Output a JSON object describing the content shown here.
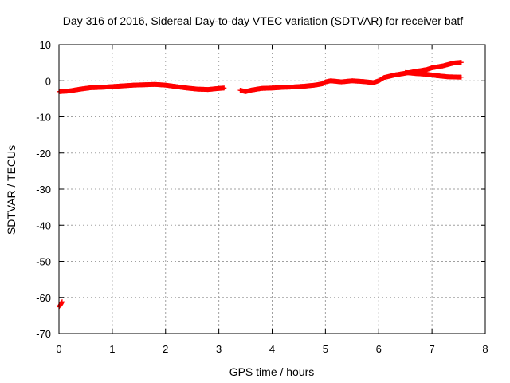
{
  "chart_data": {
    "type": "scatter",
    "title": "Day 316 of 2016, Sidereal Day-to-day VTEC variation (SDTVAR) for receiver batf",
    "xlabel": "GPS time / hours",
    "ylabel": "SDTVAR / TECUs",
    "xlim": [
      0,
      8
    ],
    "ylim": [
      -70,
      10
    ],
    "x_ticks": [
      0,
      1,
      2,
      3,
      4,
      5,
      6,
      7,
      8
    ],
    "y_ticks": [
      10,
      0,
      -10,
      -20,
      -30,
      -40,
      -50,
      -60,
      -70
    ],
    "grid": true,
    "legend": "none",
    "colors": {
      "series": "#ff0000",
      "grid": "#a0a0a0",
      "axis": "#000000"
    },
    "series": [
      {
        "name": "segment-1",
        "x": [
          0.0,
          0.2,
          0.4,
          0.6,
          0.8,
          1.0,
          1.2,
          1.4,
          1.6,
          1.8,
          2.0,
          2.2,
          2.4,
          2.6,
          2.8,
          3.0,
          3.1
        ],
        "y": [
          -3.0,
          -2.8,
          -2.3,
          -1.9,
          -1.8,
          -1.6,
          -1.4,
          -1.2,
          -1.1,
          -1.0,
          -1.2,
          -1.6,
          -2.0,
          -2.3,
          -2.4,
          -2.1,
          -2.0
        ]
      },
      {
        "name": "segment-2",
        "x": [
          3.4,
          3.5,
          3.6,
          3.8,
          4.0,
          4.2,
          4.4,
          4.6,
          4.8,
          4.95,
          5.0,
          5.1,
          5.3,
          5.5,
          5.7,
          5.9,
          6.0,
          6.1,
          6.3,
          6.5,
          6.7,
          6.9,
          7.0,
          7.2,
          7.4,
          7.55
        ],
        "y": [
          -2.6,
          -3.0,
          -2.6,
          -2.1,
          -2.0,
          -1.8,
          -1.7,
          -1.5,
          -1.2,
          -0.8,
          -0.3,
          0.0,
          -0.3,
          0.0,
          -0.2,
          -0.5,
          0.0,
          0.9,
          1.6,
          2.1,
          2.6,
          3.1,
          3.6,
          4.1,
          4.9,
          5.1
        ]
      },
      {
        "name": "segment-3",
        "x": [
          6.5,
          6.7,
          6.9,
          7.1,
          7.3,
          7.55
        ],
        "y": [
          2.3,
          2.0,
          1.8,
          1.4,
          1.1,
          1.0
        ]
      },
      {
        "name": "segment-4",
        "x": [
          0.0,
          0.03,
          0.06
        ],
        "y": [
          -62.6,
          -62.0,
          -61.2
        ]
      }
    ]
  }
}
